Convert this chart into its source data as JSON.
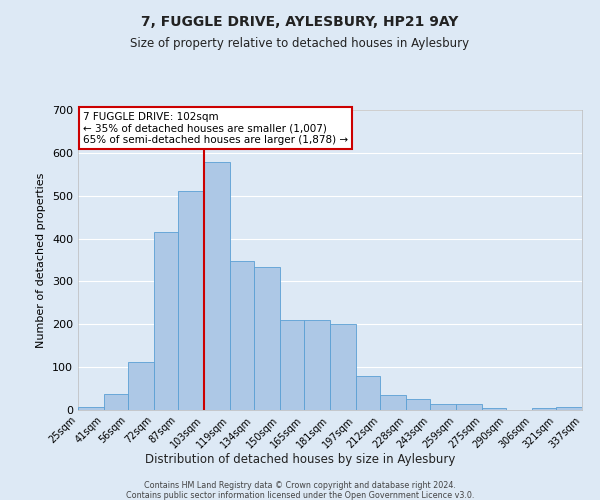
{
  "title": "7, FUGGLE DRIVE, AYLESBURY, HP21 9AY",
  "subtitle": "Size of property relative to detached houses in Aylesbury",
  "xlabel": "Distribution of detached houses by size in Aylesbury",
  "ylabel": "Number of detached properties",
  "bar_color": "#adc8e6",
  "bar_edge_color": "#5a9fd4",
  "background_color": "#dde9f5",
  "grid_color": "#ffffff",
  "vline_x": 103,
  "vline_color": "#cc0000",
  "bin_edges": [
    25,
    41,
    56,
    72,
    87,
    103,
    119,
    134,
    150,
    165,
    181,
    197,
    212,
    228,
    243,
    259,
    275,
    290,
    306,
    321,
    337
  ],
  "bar_heights": [
    8,
    37,
    112,
    415,
    510,
    578,
    347,
    333,
    211,
    211,
    200,
    80,
    35,
    25,
    13,
    13,
    5,
    0,
    5,
    8
  ],
  "tick_labels": [
    "25sqm",
    "41sqm",
    "56sqm",
    "72sqm",
    "87sqm",
    "103sqm",
    "119sqm",
    "134sqm",
    "150sqm",
    "165sqm",
    "181sqm",
    "197sqm",
    "212sqm",
    "228sqm",
    "243sqm",
    "259sqm",
    "275sqm",
    "290sqm",
    "306sqm",
    "321sqm",
    "337sqm"
  ],
  "ylim": [
    0,
    700
  ],
  "yticks": [
    0,
    100,
    200,
    300,
    400,
    500,
    600,
    700
  ],
  "annotation_title": "7 FUGGLE DRIVE: 102sqm",
  "annotation_line1": "← 35% of detached houses are smaller (1,007)",
  "annotation_line2": "65% of semi-detached houses are larger (1,878) →",
  "annotation_box_color": "#ffffff",
  "annotation_box_edge": "#cc0000",
  "footer1": "Contains HM Land Registry data © Crown copyright and database right 2024.",
  "footer2": "Contains public sector information licensed under the Open Government Licence v3.0."
}
